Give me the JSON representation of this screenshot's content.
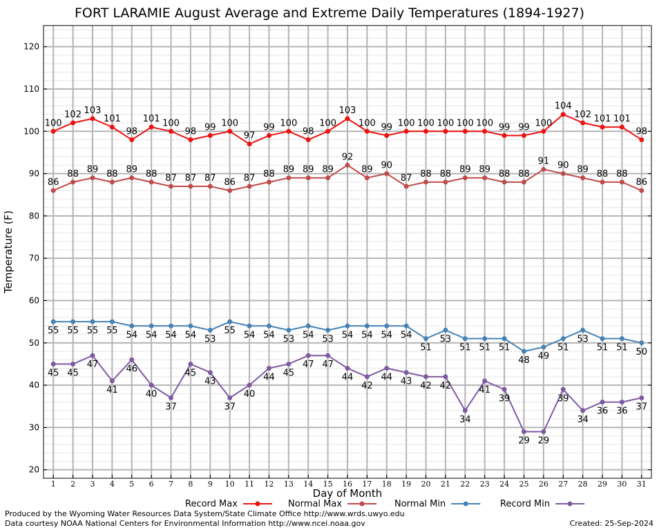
{
  "chart_data": {
    "type": "line",
    "title": "FORT LARAMIE August Average and Extreme Daily Temperatures (1894-1927)",
    "xlabel": "Day of Month",
    "ylabel": "Temperature (F)",
    "ylim": [
      18,
      125
    ],
    "xlim": [
      0.5,
      31.5
    ],
    "yticks": [
      20,
      30,
      40,
      50,
      60,
      70,
      80,
      90,
      100,
      110,
      120
    ],
    "categories": [
      "1",
      "2",
      "3",
      "4",
      "5",
      "6",
      "7",
      "8",
      "9",
      "10",
      "11",
      "12",
      "13",
      "14",
      "15",
      "16",
      "17",
      "18",
      "19",
      "20",
      "21",
      "22",
      "23",
      "24",
      "25",
      "26",
      "27",
      "28",
      "29",
      "30",
      "31"
    ],
    "grid": true,
    "legend_position": "bottom",
    "series": [
      {
        "name": "Record Max",
        "color": "#ee1111",
        "label_pos": "above",
        "values": [
          100,
          102,
          103,
          101,
          98,
          101,
          100,
          98,
          99,
          100,
          97,
          99,
          100,
          98,
          100,
          103,
          100,
          99,
          100,
          100,
          100,
          100,
          100,
          99,
          99,
          100,
          104,
          102,
          101,
          101,
          98
        ]
      },
      {
        "name": "Normal Max",
        "color": "#c04a4a",
        "label_pos": "above",
        "values": [
          86,
          88,
          89,
          88,
          89,
          88,
          87,
          87,
          87,
          86,
          87,
          88,
          89,
          89,
          89,
          92,
          89,
          90,
          87,
          88,
          88,
          89,
          89,
          88,
          88,
          91,
          90,
          89,
          88,
          88,
          86
        ]
      },
      {
        "name": "Normal Min",
        "color": "#4682b4",
        "label_pos": "below",
        "values": [
          55,
          55,
          55,
          55,
          54,
          54,
          54,
          54,
          53,
          55,
          54,
          54,
          53,
          54,
          53,
          54,
          54,
          54,
          54,
          51,
          53,
          51,
          51,
          51,
          48,
          49,
          51,
          53,
          51,
          51,
          50
        ]
      },
      {
        "name": "Record Min",
        "color": "#7d5aa0",
        "label_pos": "below",
        "values": [
          45,
          45,
          47,
          41,
          46,
          40,
          37,
          45,
          43,
          37,
          40,
          44,
          45,
          47,
          47,
          44,
          42,
          44,
          43,
          42,
          42,
          34,
          41,
          39,
          29,
          29,
          39,
          34,
          36,
          36,
          37
        ]
      }
    ]
  },
  "footer": {
    "produced_by": "Produced by the Wyoming Water Resources Data System/State Climate Office http://www.wrds.uwyo.edu",
    "courtesy": "Data courtesy NOAA National Centers for Environmental Information http://www.ncei.noaa.gov",
    "created": "Created:  25-Sep-2024"
  }
}
